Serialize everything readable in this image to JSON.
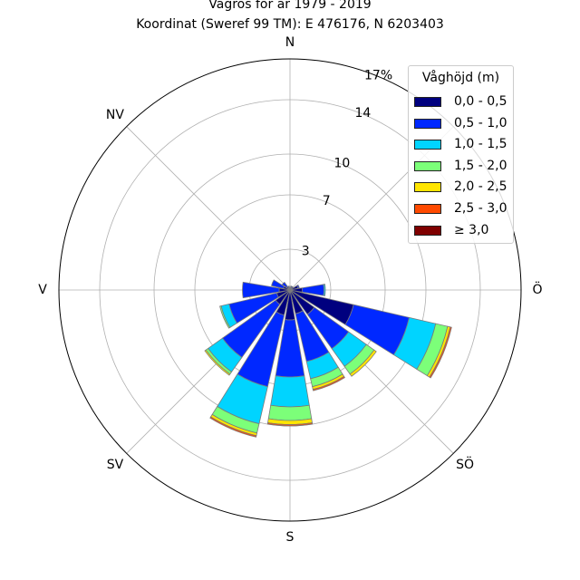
{
  "chart_data": {
    "type": "windrose",
    "title": "Vågros för år 1979 - 2019",
    "subtitle": "Koordinat (Sweref 99 TM): E 476176, N 6203403",
    "directions": [
      "N",
      "NV",
      "V",
      "SV",
      "S",
      "SÖ",
      "Ö"
    ],
    "radial_ticks": [
      "3",
      "7",
      "10",
      "14",
      "17%"
    ],
    "rmax": 17,
    "legend": {
      "title": "Våghöjd (m)",
      "placement": "top-right",
      "bins": [
        "0,0 - 0,5",
        "0,5 - 1,0",
        "1,0 - 1,5",
        "1,5 - 2,0",
        "2,0 - 2,5",
        "2,5 - 3,0",
        "≥ 3,0"
      ],
      "colors": [
        "#00007f",
        "#0028ff",
        "#00d4ff",
        "#7cff79",
        "#ffe500",
        "#ff4a00",
        "#7f0000"
      ]
    },
    "sectors_deg": [
      0,
      22.5,
      45,
      67.5,
      90,
      112.5,
      135,
      157.5,
      180,
      202.5,
      225,
      247.5,
      270,
      292.5,
      315,
      337.5
    ],
    "series": [
      {
        "bin": "0,0 - 0,5",
        "values": [
          0.2,
          0.2,
          0.2,
          0.6,
          0.9,
          4.8,
          2.2,
          1.8,
          2.2,
          1.9,
          1.3,
          1.0,
          0.8,
          0.5,
          0.3,
          0.2
        ]
      },
      {
        "bin": "0,5 - 1,0",
        "values": [
          0.0,
          0.1,
          0.1,
          0.1,
          1.6,
          4.2,
          3.1,
          3.6,
          4.2,
          5.4,
          4.8,
          3.6,
          2.7,
          0.9,
          0.4,
          0.1
        ]
      },
      {
        "bin": "1,0 - 1,5",
        "values": [
          0.0,
          0.0,
          0.0,
          0.0,
          0.1,
          2.0,
          1.6,
          1.3,
          2.2,
          2.8,
          1.3,
          0.6,
          0.0,
          0.0,
          0.0,
          0.0
        ]
      },
      {
        "bin": "1,5 - 2,0",
        "values": [
          0.0,
          0.0,
          0.0,
          0.0,
          0.0,
          0.9,
          0.7,
          0.6,
          1.0,
          0.7,
          0.2,
          0.1,
          0.0,
          0.0,
          0.0,
          0.0
        ]
      },
      {
        "bin": "2,0 - 2,5",
        "values": [
          0.0,
          0.0,
          0.0,
          0.0,
          0.0,
          0.2,
          0.2,
          0.2,
          0.3,
          0.2,
          0.1,
          0.0,
          0.0,
          0.0,
          0.0,
          0.0
        ]
      },
      {
        "bin": "2,5 - 3,0",
        "values": [
          0.0,
          0.0,
          0.0,
          0.0,
          0.0,
          0.1,
          0.0,
          0.1,
          0.1,
          0.1,
          0.0,
          0.0,
          0.0,
          0.0,
          0.0,
          0.0
        ]
      },
      {
        "bin": "≥ 3,0",
        "values": [
          0.0,
          0.0,
          0.0,
          0.0,
          0.0,
          0.0,
          0.0,
          0.0,
          0.0,
          0.0,
          0.0,
          0.0,
          0.0,
          0.0,
          0.0,
          0.0
        ]
      }
    ]
  }
}
